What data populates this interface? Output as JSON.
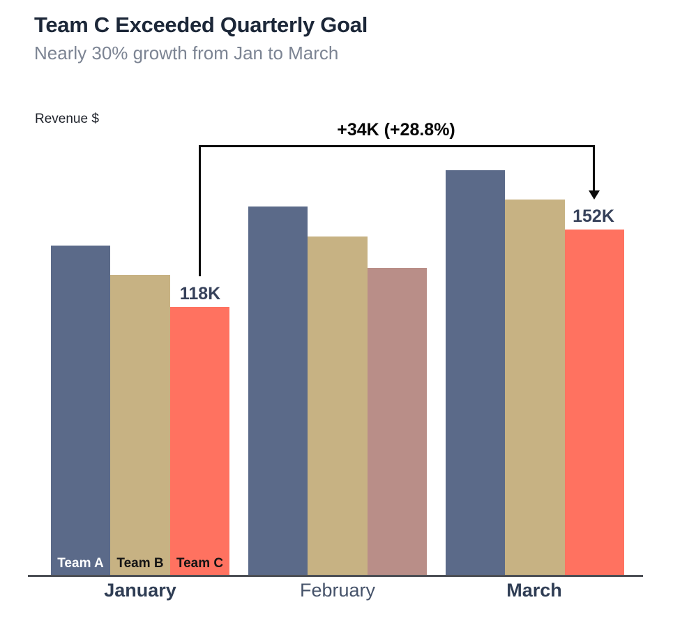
{
  "header": {
    "title": "Team C Exceeded Quarterly Goal",
    "subtitle": "Nearly 30% growth from Jan to March"
  },
  "chart": {
    "y_axis_label": "Revenue $",
    "annotation_label": "+34K (+28.8%)",
    "value_labels": {
      "jan_team_c": "118K",
      "mar_team_c": "152K"
    },
    "legend": {
      "team_a": "Team A",
      "team_b": "Team B",
      "team_c": "Team C"
    },
    "x_axis": [
      {
        "label": "January",
        "bold": true
      },
      {
        "label": "February",
        "bold": false
      },
      {
        "label": "March",
        "bold": true
      }
    ]
  },
  "colors": {
    "team_a": "#5b6a89",
    "team_b": "#c7b283",
    "team_c": "#ff7260",
    "team_c_feb_muted": "#b98e88",
    "title_text": "#1c2738",
    "subtitle_text": "#7c8493",
    "value_label_text": "#36415a",
    "annotation_text": "#0b0b0b",
    "axis_line": "#4c4f55",
    "month_bold_text": "#2f3d54",
    "month_regular_text": "#46536a"
  },
  "chart_data": {
    "type": "bar",
    "title": "Team C Exceeded Quarterly Goal",
    "subtitle": "Nearly 30% growth from Jan to March",
    "ylabel": "Revenue $",
    "xlabel": "",
    "units": "thousands of dollars (K)",
    "categories": [
      "January",
      "February",
      "March"
    ],
    "series": [
      {
        "name": "Team A",
        "values": [
          145,
          162,
          178
        ],
        "note": "unlabeled; estimated from bar heights"
      },
      {
        "name": "Team B",
        "values": [
          132,
          149,
          165
        ],
        "note": "unlabeled; estimated from bar heights"
      },
      {
        "name": "Team C",
        "values": [
          118,
          135,
          152
        ],
        "note": "118K and 152K labeled on chart; February value estimated"
      }
    ],
    "value_labels": [
      {
        "series": "Team C",
        "category": "January",
        "label": "118K"
      },
      {
        "series": "Team C",
        "category": "March",
        "label": "152K"
      }
    ],
    "annotation": {
      "text": "+34K (+28.8%)",
      "from": {
        "category": "January",
        "series": "Team C"
      },
      "to": {
        "category": "March",
        "series": "Team C"
      }
    },
    "grid": false,
    "legend_position": "labels inside the bottoms of the January bars",
    "highlight": "Team C bar is salmon in January and March but muted mauve in February",
    "ylim": [
      0,
      185
    ]
  }
}
